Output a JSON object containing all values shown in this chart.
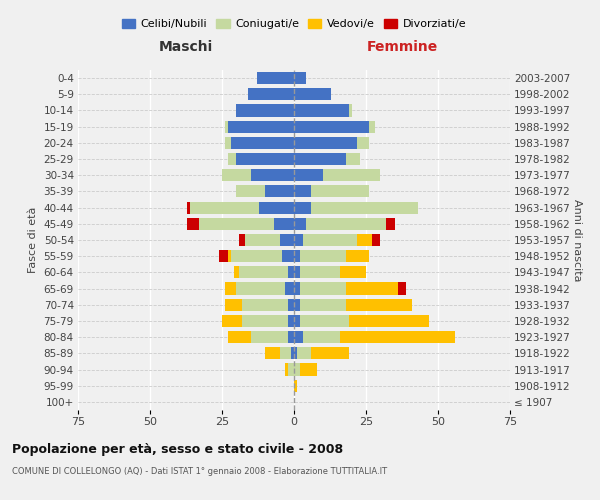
{
  "age_groups": [
    "100+",
    "95-99",
    "90-94",
    "85-89",
    "80-84",
    "75-79",
    "70-74",
    "65-69",
    "60-64",
    "55-59",
    "50-54",
    "45-49",
    "40-44",
    "35-39",
    "30-34",
    "25-29",
    "20-24",
    "15-19",
    "10-14",
    "5-9",
    "0-4"
  ],
  "birth_years": [
    "≤ 1907",
    "1908-1912",
    "1913-1917",
    "1918-1922",
    "1923-1927",
    "1928-1932",
    "1933-1937",
    "1938-1942",
    "1943-1947",
    "1948-1952",
    "1953-1957",
    "1958-1962",
    "1963-1967",
    "1968-1972",
    "1973-1977",
    "1978-1982",
    "1983-1987",
    "1988-1992",
    "1993-1997",
    "1998-2002",
    "2003-2007"
  ],
  "male": {
    "celibi": [
      0,
      0,
      0,
      1,
      2,
      2,
      2,
      3,
      2,
      4,
      5,
      7,
      12,
      10,
      15,
      20,
      22,
      23,
      20,
      16,
      13
    ],
    "coniugati": [
      0,
      0,
      2,
      4,
      13,
      16,
      16,
      17,
      17,
      18,
      12,
      26,
      24,
      10,
      10,
      3,
      2,
      1,
      0,
      0,
      0
    ],
    "vedovi": [
      0,
      0,
      1,
      5,
      8,
      7,
      6,
      4,
      2,
      1,
      0,
      0,
      0,
      0,
      0,
      0,
      0,
      0,
      0,
      0,
      0
    ],
    "divorziati": [
      0,
      0,
      0,
      0,
      0,
      0,
      0,
      0,
      0,
      3,
      2,
      4,
      1,
      0,
      0,
      0,
      0,
      0,
      0,
      0,
      0
    ]
  },
  "female": {
    "nubili": [
      0,
      0,
      0,
      1,
      3,
      2,
      2,
      2,
      2,
      2,
      3,
      4,
      6,
      6,
      10,
      18,
      22,
      26,
      19,
      13,
      4
    ],
    "coniugate": [
      0,
      0,
      2,
      5,
      13,
      17,
      16,
      16,
      14,
      16,
      19,
      28,
      37,
      20,
      20,
      5,
      4,
      2,
      1,
      0,
      0
    ],
    "vedove": [
      0,
      1,
      6,
      13,
      40,
      28,
      23,
      18,
      9,
      8,
      5,
      0,
      0,
      0,
      0,
      0,
      0,
      0,
      0,
      0,
      0
    ],
    "divorziate": [
      0,
      0,
      0,
      0,
      0,
      0,
      0,
      3,
      0,
      0,
      3,
      3,
      0,
      0,
      0,
      0,
      0,
      0,
      0,
      0,
      0
    ]
  },
  "colors": {
    "celibi": "#4472c4",
    "coniugati": "#c5d9a0",
    "vedovi": "#ffc000",
    "divorziati": "#cc0000"
  },
  "xlim": 75,
  "title": "Popolazione per età, sesso e stato civile - 2008",
  "subtitle": "COMUNE DI COLLELONGO (AQ) - Dati ISTAT 1° gennaio 2008 - Elaborazione TUTTITALIA.IT",
  "ylabel_left": "Fasce di età",
  "ylabel_right": "Anni di nascita",
  "xlabel_left": "Maschi",
  "xlabel_right": "Femmine",
  "legend_labels": [
    "Celibi/Nubili",
    "Coniugati/e",
    "Vedovi/e",
    "Divorziati/e"
  ],
  "background_color": "#f0f0f0"
}
